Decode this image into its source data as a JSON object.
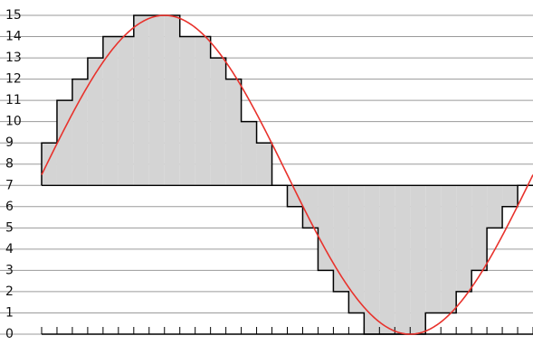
{
  "chart_data": {
    "type": "line",
    "title": "",
    "xlabel": "",
    "ylabel": "",
    "grid": true,
    "ylim": [
      0,
      15
    ],
    "xlim": [
      0,
      32
    ],
    "y_ticks": [
      0,
      1,
      2,
      3,
      4,
      5,
      6,
      7,
      8,
      9,
      10,
      11,
      12,
      13,
      14,
      15
    ],
    "x_minor_ticks": 32,
    "series": [
      {
        "kind": "continuous",
        "color": "#e8322c",
        "function": "sine",
        "offset": 7.5,
        "amplitude": 7.5,
        "period": 32
      },
      {
        "kind": "step",
        "color": "#000000",
        "fill": "#d4d4d4",
        "baseline": 7,
        "values": [
          9,
          11,
          12,
          13,
          14,
          14,
          15,
          15,
          15,
          14,
          14,
          13,
          12,
          10,
          9,
          7,
          6,
          5,
          3,
          2,
          1,
          0,
          0,
          0,
          0,
          1,
          1,
          2,
          3,
          5,
          6,
          7
        ]
      }
    ]
  }
}
